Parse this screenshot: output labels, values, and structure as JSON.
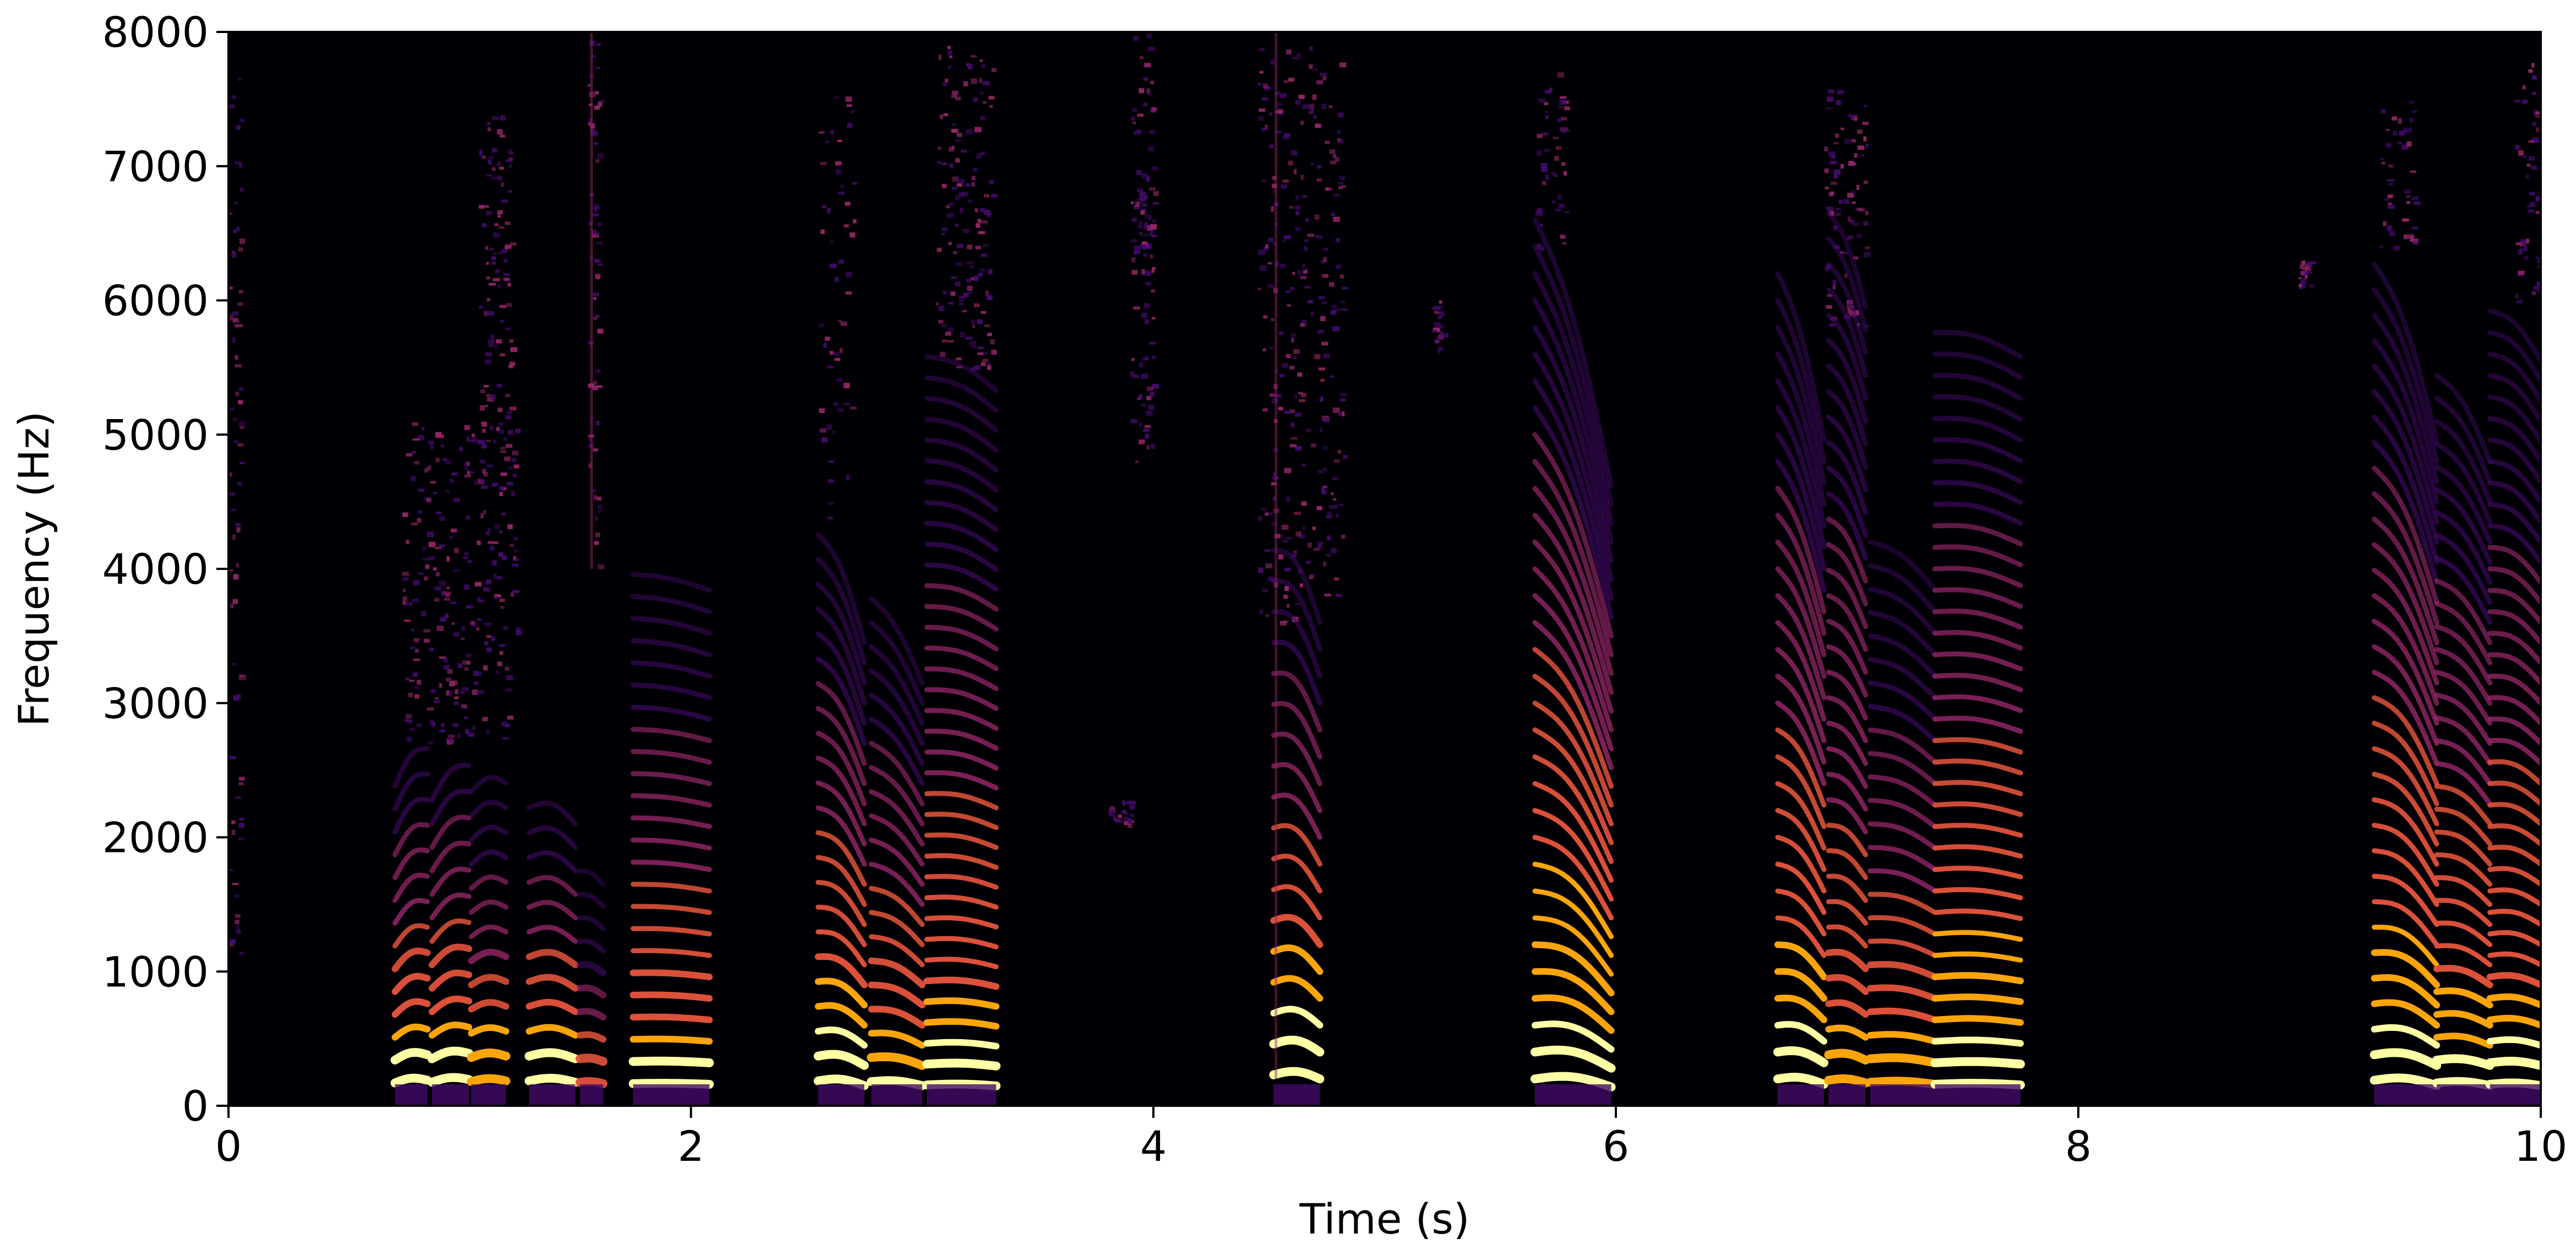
{
  "chart_data": {
    "type": "heatmap",
    "title": "",
    "xlabel": "Time (s)",
    "ylabel": "Frequency (Hz)",
    "xlim": [
      0,
      10
    ],
    "ylim": [
      0,
      8000
    ],
    "x_ticks": [
      0,
      2,
      4,
      6,
      8,
      10
    ],
    "x_tick_labels": [
      "0",
      "2",
      "4",
      "6",
      "8",
      "10"
    ],
    "y_ticks": [
      0,
      1000,
      2000,
      3000,
      4000,
      5000,
      6000,
      7000,
      8000
    ],
    "y_tick_labels": [
      "0",
      "1000",
      "2000",
      "3000",
      "4000",
      "5000",
      "6000",
      "7000",
      "8000"
    ],
    "colormap": "inferno",
    "background_color": "#000004",
    "colors": {
      "low": "#000004",
      "dark_purple": "#420a68",
      "purple": "#932667",
      "orange_red": "#dd513a",
      "orange": "#fca50a",
      "yellow": "#fcffa4"
    },
    "harmonic_segments": [
      {
        "start": 0.72,
        "end": 0.86,
        "f0": 170,
        "f0_end": 190,
        "curve": 25,
        "max_freq": 2700,
        "intensity": 0.85
      },
      {
        "start": 0.88,
        "end": 1.04,
        "f0": 175,
        "f0_end": 195,
        "curve": 25,
        "max_freq": 2700,
        "intensity": 0.85
      },
      {
        "start": 1.05,
        "end": 1.2,
        "f0": 180,
        "f0_end": 185,
        "curve": 20,
        "max_freq": 2500,
        "intensity": 0.75
      },
      {
        "start": 1.3,
        "end": 1.5,
        "f0": 185,
        "f0_end": 175,
        "curve": 25,
        "max_freq": 2400,
        "intensity": 0.85
      },
      {
        "start": 1.52,
        "end": 1.62,
        "f0": 175,
        "f0_end": 165,
        "curve": 10,
        "max_freq": 1800,
        "intensity": 0.55
      },
      {
        "start": 1.75,
        "end": 2.08,
        "f0": 165,
        "f0_end": 160,
        "curve": 5,
        "max_freq": 4100,
        "intensity": 0.8
      },
      {
        "start": 2.55,
        "end": 2.75,
        "f0": 185,
        "f0_end": 150,
        "curve": 30,
        "max_freq": 4300,
        "intensity": 0.85
      },
      {
        "start": 2.78,
        "end": 3.0,
        "f0": 180,
        "f0_end": 150,
        "curve": 20,
        "max_freq": 3800,
        "intensity": 0.8
      },
      {
        "start": 3.02,
        "end": 3.32,
        "f0": 155,
        "f0_end": 148,
        "curve": 10,
        "max_freq": 5600,
        "intensity": 0.8
      },
      {
        "start": 4.52,
        "end": 4.72,
        "f0": 230,
        "f0_end": 200,
        "curve": 40,
        "max_freq": 4200,
        "intensity": 0.9
      },
      {
        "start": 5.65,
        "end": 5.98,
        "f0": 200,
        "f0_end": 140,
        "curve": 45,
        "max_freq": 6600,
        "intensity": 0.9
      },
      {
        "start": 6.7,
        "end": 6.9,
        "f0": 200,
        "f0_end": 160,
        "curve": 30,
        "max_freq": 6200,
        "intensity": 0.85
      },
      {
        "start": 6.92,
        "end": 7.08,
        "f0": 190,
        "f0_end": 170,
        "curve": 20,
        "max_freq": 6800,
        "intensity": 0.7
      },
      {
        "start": 7.1,
        "end": 7.38,
        "f0": 175,
        "f0_end": 160,
        "curve": 15,
        "max_freq": 4200,
        "intensity": 0.75
      },
      {
        "start": 7.38,
        "end": 7.75,
        "f0": 160,
        "f0_end": 155,
        "curve": 10,
        "max_freq": 5900,
        "intensity": 0.85
      },
      {
        "start": 9.28,
        "end": 9.55,
        "f0": 190,
        "f0_end": 150,
        "curve": 35,
        "max_freq": 6400,
        "intensity": 0.85
      },
      {
        "start": 9.55,
        "end": 9.78,
        "f0": 170,
        "f0_end": 150,
        "curve": 20,
        "max_freq": 5600,
        "intensity": 0.8
      },
      {
        "start": 9.78,
        "end": 10.0,
        "f0": 160,
        "f0_end": 150,
        "curve": 15,
        "max_freq": 6000,
        "intensity": 0.8
      }
    ],
    "noise_regions": [
      {
        "t0": 0.0,
        "t1": 0.05,
        "f0": 900,
        "f1": 7800,
        "density": 0.35
      },
      {
        "t0": 0.75,
        "t1": 1.25,
        "f0": 2700,
        "f1": 5100,
        "density": 0.45
      },
      {
        "t0": 1.08,
        "t1": 1.22,
        "f0": 5000,
        "f1": 7400,
        "density": 0.5
      },
      {
        "t0": 1.55,
        "t1": 1.6,
        "f0": 4000,
        "f1": 8000,
        "density": 0.5
      },
      {
        "t0": 2.55,
        "t1": 2.7,
        "f0": 4300,
        "f1": 7600,
        "density": 0.15
      },
      {
        "t0": 3.05,
        "t1": 3.3,
        "f0": 5500,
        "f1": 7900,
        "density": 0.45
      },
      {
        "t0": 3.9,
        "t1": 4.0,
        "f0": 4800,
        "f1": 8000,
        "density": 0.45
      },
      {
        "t0": 3.92,
        "t1": 4.0,
        "f0": 6200,
        "f1": 6800,
        "density": 0.6
      },
      {
        "t0": 3.8,
        "t1": 3.9,
        "f0": 2100,
        "f1": 2300,
        "density": 0.3
      },
      {
        "t0": 4.45,
        "t1": 4.82,
        "f0": 3600,
        "f1": 7900,
        "density": 0.35
      },
      {
        "t0": 5.65,
        "t1": 5.78,
        "f0": 6400,
        "f1": 7700,
        "density": 0.35
      },
      {
        "t0": 5.2,
        "t1": 5.25,
        "f0": 5600,
        "f1": 6000,
        "density": 0.3
      },
      {
        "t0": 6.9,
        "t1": 7.08,
        "f0": 5800,
        "f1": 7600,
        "density": 0.45
      },
      {
        "t0": 9.3,
        "t1": 9.45,
        "f0": 6400,
        "f1": 7500,
        "density": 0.3
      },
      {
        "t0": 9.88,
        "t1": 10.0,
        "f0": 6000,
        "f1": 7800,
        "density": 0.35
      },
      {
        "t0": 8.95,
        "t1": 9.0,
        "f0": 6100,
        "f1": 6300,
        "density": 0.3
      }
    ],
    "transient_lines": [
      {
        "t": 4.53,
        "f0": 200,
        "f1": 8000,
        "intensity": 0.45
      },
      {
        "t": 1.57,
        "f0": 4000,
        "f1": 8000,
        "intensity": 0.5
      }
    ]
  }
}
